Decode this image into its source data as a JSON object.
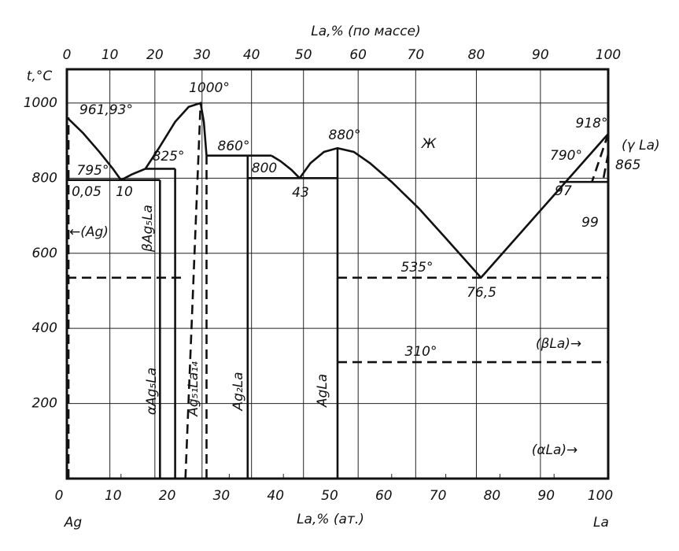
{
  "chart_data": {
    "type": "phase",
    "ylabel": "t,°C",
    "xlabel": "La,% (ат.)",
    "x2label": "La,% (по массе)",
    "xlim": [
      0,
      100
    ],
    "ylim": [
      0,
      1090
    ],
    "xticks": [
      0,
      10,
      20,
      30,
      40,
      50,
      60,
      70,
      80,
      90,
      100
    ],
    "x2ticks": [
      0,
      10,
      20,
      30,
      40,
      50,
      60,
      70,
      80,
      90,
      100
    ],
    "yticks": [
      200,
      400,
      600,
      800,
      1000
    ],
    "grid": true,
    "lines": [
      {
        "x": [
          0,
          3,
          6,
          8.5,
          10
        ],
        "y": [
          961.93,
          920,
          870,
          825,
          795
        ],
        "dash": false
      },
      {
        "x": [
          10,
          12,
          14.5,
          17,
          20,
          22.5,
          24.7,
          25.3,
          25.8
        ],
        "y": [
          795,
          810,
          825,
          880,
          950,
          990,
          1000,
          950,
          860
        ],
        "dash": false
      },
      {
        "x": [
          37.8,
          39.5,
          41.5,
          43
        ],
        "y": [
          860,
          845,
          822,
          800
        ],
        "dash": false
      },
      {
        "x": [
          43,
          45,
          47.5,
          50,
          53,
          56,
          60,
          65,
          70,
          76.5
        ],
        "y": [
          800,
          840,
          870,
          880,
          870,
          840,
          790,
          720,
          640,
          535
        ],
        "dash": false
      },
      {
        "x": [
          76.5,
          100
        ],
        "y": [
          535,
          918
        ],
        "dash": false
      },
      {
        "x": [
          0,
          17.2
        ],
        "y": [
          795,
          795
        ],
        "dash": false
      },
      {
        "x": [
          14.5,
          20
        ],
        "y": [
          825,
          825
        ],
        "dash": false
      },
      {
        "x": [
          25.8,
          37.8
        ],
        "y": [
          860,
          860
        ],
        "dash": false
      },
      {
        "x": [
          33.4,
          50
        ],
        "y": [
          800,
          800
        ],
        "dash": false
      },
      {
        "x": [
          91,
          100
        ],
        "y": [
          790,
          790
        ],
        "dash": false
      },
      {
        "x": [
          17.2,
          17.2
        ],
        "y": [
          0,
          795
        ],
        "dash": false
      },
      {
        "x": [
          20,
          20
        ],
        "y": [
          0,
          825
        ],
        "dash": false
      },
      {
        "x": [
          21.9,
          24.7
        ],
        "y": [
          0,
          1000
        ],
        "dash": true
      },
      {
        "x": [
          25.8,
          25.8
        ],
        "y": [
          0,
          860
        ],
        "dash": true
      },
      {
        "x": [
          33.4,
          33.4
        ],
        "y": [
          0,
          860
        ],
        "dash": false
      },
      {
        "x": [
          50,
          50
        ],
        "y": [
          0,
          880
        ],
        "dash": false
      },
      {
        "x": [
          0.3,
          0.3
        ],
        "y": [
          0,
          961.93
        ],
        "dash": true
      },
      {
        "x": [
          0,
          21.9
        ],
        "y": [
          535,
          535
        ],
        "dash": true
      },
      {
        "x": [
          50,
          100
        ],
        "y": [
          535,
          535
        ],
        "dash": true
      },
      {
        "x": [
          50,
          100
        ],
        "y": [
          310,
          310
        ],
        "dash": true
      },
      {
        "x": [
          100,
          97
        ],
        "y": [
          918,
          790
        ],
        "dash": true
      },
      {
        "x": [
          100,
          99
        ],
        "y": [
          865,
          790
        ],
        "dash": true
      }
    ],
    "annotations": [
      "961,93°",
      "1000°",
      "825°",
      "860°",
      "800",
      "880°",
      "Ж",
      "918°",
      "790°",
      "(γ La)",
      "865",
      "795°",
      "0,05",
      "10",
      "43",
      "97",
      "99",
      "←(Ag)",
      "βAg₅La",
      "535°",
      "76,5",
      "(βLa)→",
      "310°",
      "(αLa)→",
      "αAg₅La",
      "Ag₅₁La₁₄",
      "Ag₂La",
      "AgLa",
      "Ag",
      "La"
    ]
  }
}
